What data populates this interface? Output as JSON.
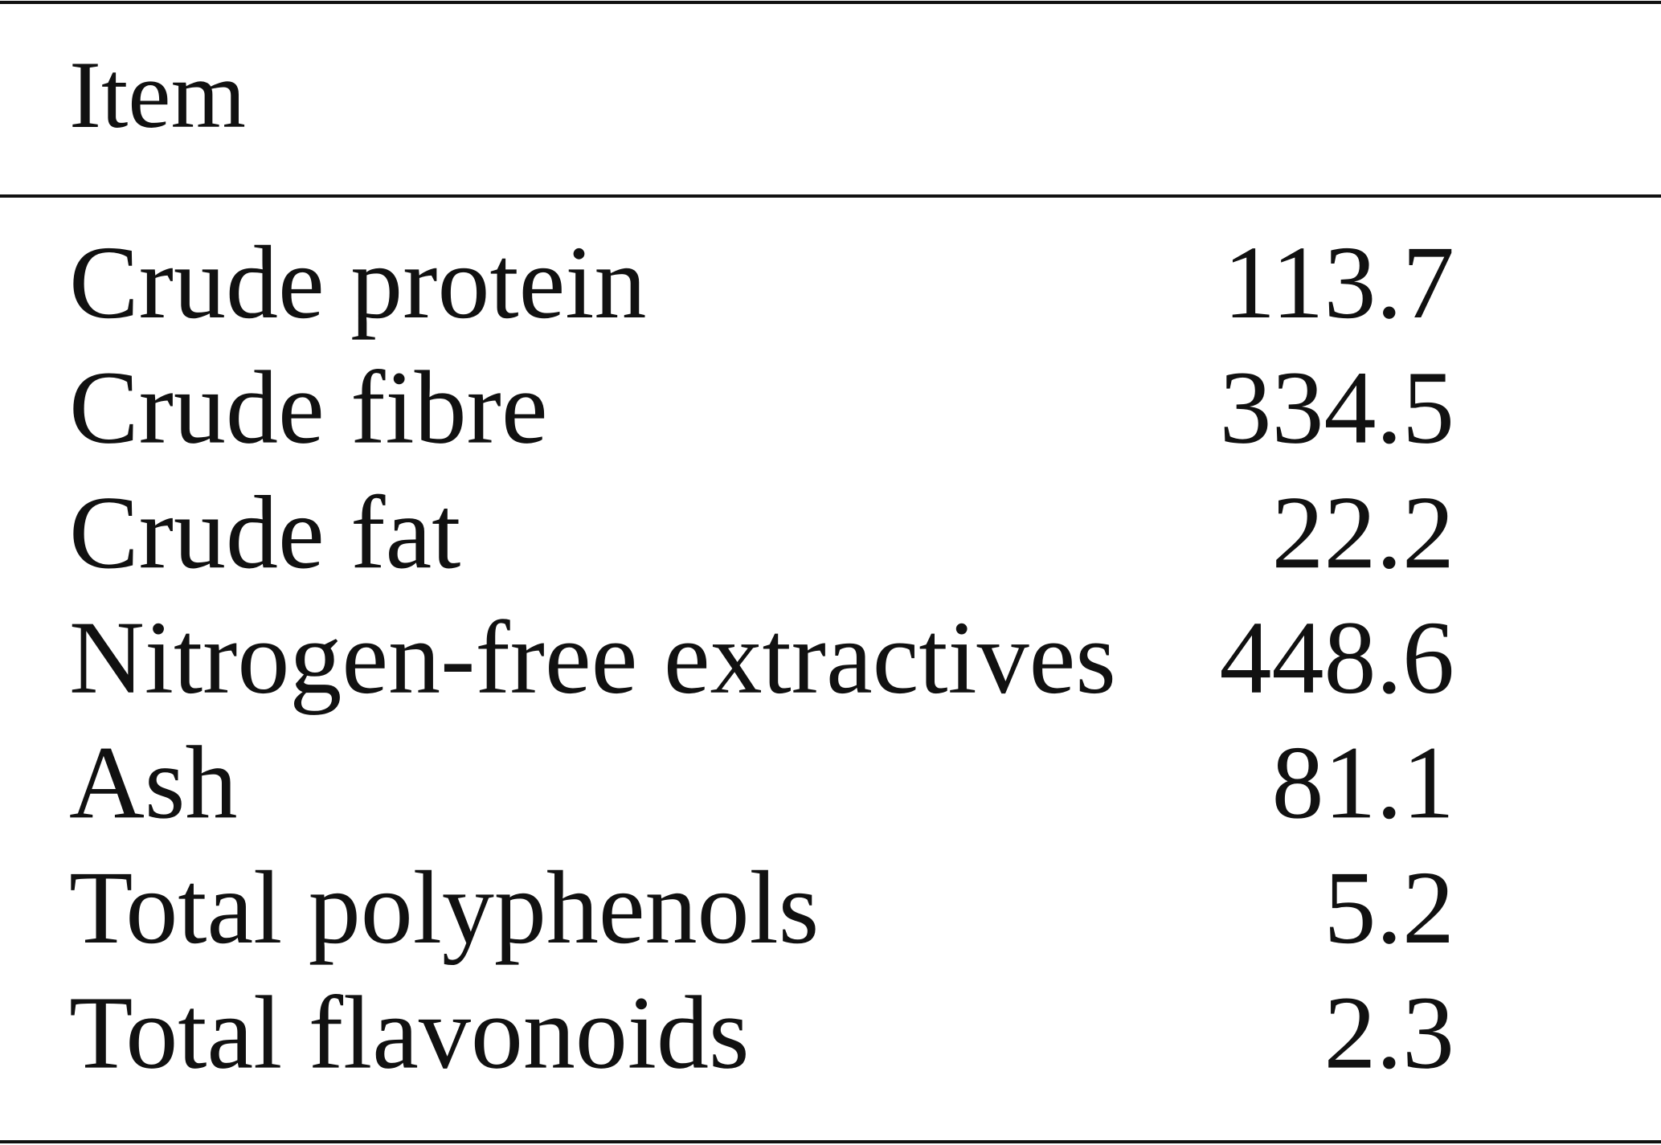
{
  "table": {
    "columns": [
      "Item"
    ],
    "rows": [
      [
        "Crude protein",
        113.7
      ],
      [
        "Crude fibre",
        334.5
      ],
      [
        "Crude fat",
        22.2
      ],
      [
        "Nitrogen-free extractives",
        448.6
      ],
      [
        "Ash",
        81.1
      ],
      [
        "Total polyphenols",
        5.2
      ],
      [
        "Total flavonoids",
        2.3
      ]
    ]
  }
}
